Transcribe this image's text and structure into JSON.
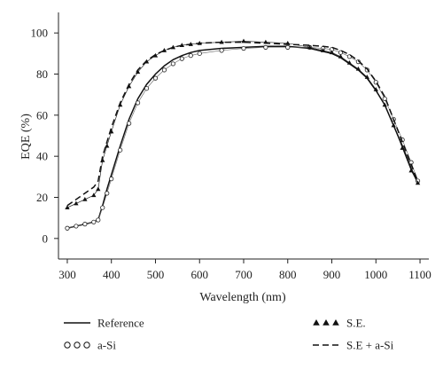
{
  "chart_data": {
    "type": "line",
    "xlabel": "Wavelength (nm)",
    "ylabel": "EQE (%)",
    "xlim": [
      280,
      1120
    ],
    "ylim": [
      -10,
      110
    ],
    "xticks": [
      300,
      400,
      500,
      600,
      700,
      800,
      900,
      1000,
      1100
    ],
    "yticks": [
      0,
      20,
      40,
      60,
      80,
      100
    ],
    "grid": false,
    "legend_position": "below",
    "series": [
      {
        "name": "Reference",
        "style": "solid",
        "x": [
          300,
          320,
          340,
          360,
          370,
          380,
          390,
          400,
          420,
          440,
          460,
          480,
          500,
          520,
          540,
          560,
          580,
          600,
          650,
          700,
          750,
          800,
          850,
          880,
          900,
          920,
          940,
          960,
          980,
          1000,
          1020,
          1040,
          1060,
          1080,
          1095
        ],
        "y": [
          5,
          6,
          7,
          8,
          9,
          16,
          24,
          31,
          45,
          58,
          68,
          75,
          80,
          84,
          87,
          89,
          90.5,
          91.5,
          92.5,
          93,
          93.5,
          93.5,
          92.5,
          91,
          90,
          88,
          85,
          82,
          78,
          72,
          65,
          55,
          45,
          34,
          27
        ]
      },
      {
        "name": "a-Si",
        "style": "open-circles",
        "x": [
          300,
          320,
          340,
          360,
          370,
          380,
          390,
          400,
          420,
          440,
          460,
          480,
          500,
          520,
          540,
          560,
          580,
          600,
          650,
          700,
          750,
          800,
          850,
          880,
          900,
          920,
          940,
          960,
          980,
          1000,
          1020,
          1040,
          1060,
          1080,
          1095
        ],
        "y": [
          5,
          6,
          7,
          8,
          9,
          15,
          22,
          29,
          43,
          56,
          66,
          73,
          78,
          82,
          85,
          87.5,
          89,
          90,
          91.5,
          92.5,
          93,
          93,
          93,
          92.5,
          92,
          90.5,
          88.5,
          86,
          82,
          76,
          68,
          58,
          48,
          37,
          28
        ]
      },
      {
        "name": "S.E.",
        "style": "filled-triangles",
        "x": [
          300,
          320,
          340,
          360,
          370,
          380,
          390,
          400,
          420,
          440,
          460,
          480,
          500,
          520,
          540,
          560,
          580,
          600,
          650,
          700,
          750,
          800,
          850,
          880,
          900,
          920,
          940,
          960,
          980,
          1000,
          1020,
          1040,
          1060,
          1080,
          1095
        ],
        "y": [
          15,
          17,
          19,
          21,
          24,
          38,
          45,
          52,
          65,
          74,
          81,
          86,
          89,
          91.5,
          93,
          94,
          94.5,
          95,
          95.5,
          96,
          95.5,
          95,
          93,
          91.5,
          90.5,
          88.5,
          85.5,
          82.5,
          78.5,
          72.5,
          65,
          55,
          44,
          33,
          27
        ]
      },
      {
        "name": "S.E + a-Si",
        "style": "dashed",
        "x": [
          300,
          320,
          340,
          360,
          370,
          380,
          390,
          400,
          420,
          440,
          460,
          480,
          500,
          520,
          540,
          560,
          580,
          600,
          650,
          700,
          750,
          800,
          850,
          880,
          900,
          920,
          940,
          960,
          980,
          1000,
          1020,
          1040,
          1060,
          1080,
          1095
        ],
        "y": [
          16,
          19,
          22,
          25,
          28,
          40,
          47,
          54,
          66,
          75,
          82,
          86.5,
          89.5,
          91.5,
          93,
          94,
          94.5,
          95,
          95.5,
          95.5,
          95,
          94.5,
          94,
          93.5,
          93,
          91.5,
          89.5,
          86.5,
          82.5,
          76.5,
          69,
          58,
          47,
          36,
          28
        ]
      }
    ]
  }
}
